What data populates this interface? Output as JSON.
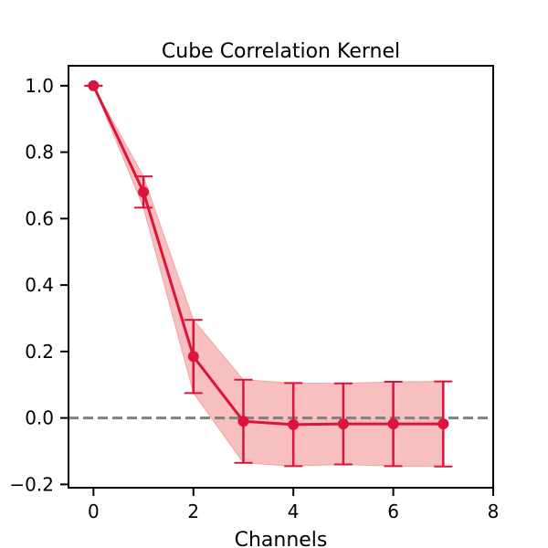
{
  "chart_data": {
    "type": "line",
    "title": "Cube Correlation Kernel",
    "xlabel": "Channels",
    "ylabel": "",
    "xlim": [
      -0.5,
      8
    ],
    "ylim": [
      -0.21,
      1.06
    ],
    "xticks": [
      0,
      2,
      4,
      6,
      8
    ],
    "yticks": [
      -0.2,
      0.0,
      0.2,
      0.4,
      0.6,
      0.8,
      1.0
    ],
    "xtick_labels": [
      "0",
      "2",
      "4",
      "6",
      "8"
    ],
    "ytick_labels": [
      "−0.2",
      "0.0",
      "0.2",
      "0.4",
      "0.6",
      "0.8",
      "1.0"
    ],
    "grid": false,
    "series": [
      {
        "x": [
          0,
          1,
          2,
          3,
          4,
          5,
          6,
          7
        ],
        "values": [
          1.0,
          0.68,
          0.185,
          -0.01,
          -0.02,
          -0.018,
          -0.018,
          -0.018
        ],
        "error": [
          0.0,
          0.047,
          0.11,
          0.125,
          0.125,
          0.122,
          0.127,
          0.128
        ],
        "color": "#dc143c",
        "band_color": "#f08080"
      }
    ],
    "reference_line": {
      "y": 0.0,
      "color": "#808080",
      "style": "dashed"
    }
  }
}
